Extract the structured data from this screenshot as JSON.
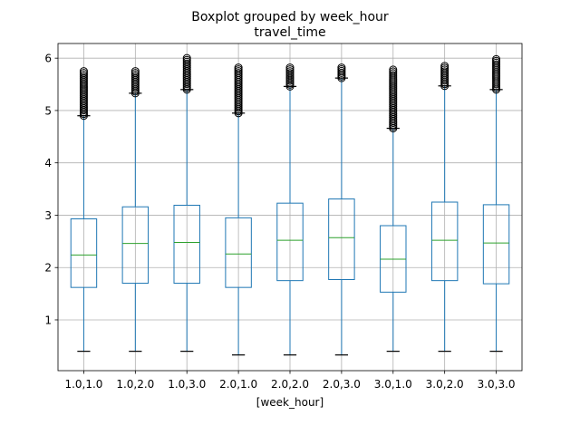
{
  "chart_data": {
    "type": "boxplot",
    "title": "Boxplot grouped by week_hour",
    "subtitle": "travel_time",
    "xlabel": "[week_hour]",
    "ylabel": "",
    "categories": [
      "1.0,1.0",
      "1.0,2.0",
      "1.0,3.0",
      "2.0,1.0",
      "2.0,2.0",
      "2.0,3.0",
      "3.0,1.0",
      "3.0,2.0",
      "3.0,3.0"
    ],
    "ylim": [
      0.03,
      6.28
    ],
    "yticks": [
      1,
      2,
      3,
      4,
      5,
      6
    ],
    "grid": true,
    "colors": {
      "box": "#1f77b4",
      "median": "#2ca02c",
      "grid": "#b0b0b0",
      "axis": "#000000"
    },
    "boxes": [
      {
        "whislo": 0.4,
        "q1": 1.62,
        "med": 2.24,
        "q3": 2.93,
        "whishi": 4.9,
        "fliers_from": 4.9,
        "fliers_to": 5.75
      },
      {
        "whislo": 0.4,
        "q1": 1.7,
        "med": 2.46,
        "q3": 3.16,
        "whishi": 5.33,
        "fliers_from": 5.33,
        "fliers_to": 5.75
      },
      {
        "whislo": 0.4,
        "q1": 1.7,
        "med": 2.48,
        "q3": 3.19,
        "whishi": 5.4,
        "fliers_from": 5.4,
        "fliers_to": 6.0
      },
      {
        "whislo": 0.33,
        "q1": 1.62,
        "med": 2.26,
        "q3": 2.95,
        "whishi": 4.95,
        "fliers_from": 4.95,
        "fliers_to": 5.82
      },
      {
        "whislo": 0.33,
        "q1": 1.75,
        "med": 2.52,
        "q3": 3.23,
        "whishi": 5.46,
        "fliers_from": 5.46,
        "fliers_to": 5.82
      },
      {
        "whislo": 0.33,
        "q1": 1.77,
        "med": 2.57,
        "q3": 3.31,
        "whishi": 5.62,
        "fliers_from": 5.62,
        "fliers_to": 5.82
      },
      {
        "whislo": 0.4,
        "q1": 1.53,
        "med": 2.16,
        "q3": 2.8,
        "whishi": 4.66,
        "fliers_from": 4.66,
        "fliers_to": 5.78
      },
      {
        "whislo": 0.4,
        "q1": 1.75,
        "med": 2.52,
        "q3": 3.25,
        "whishi": 5.47,
        "fliers_from": 5.47,
        "fliers_to": 5.85
      },
      {
        "whislo": 0.4,
        "q1": 1.69,
        "med": 2.47,
        "q3": 3.2,
        "whishi": 5.4,
        "fliers_from": 5.4,
        "fliers_to": 5.98
      }
    ]
  }
}
